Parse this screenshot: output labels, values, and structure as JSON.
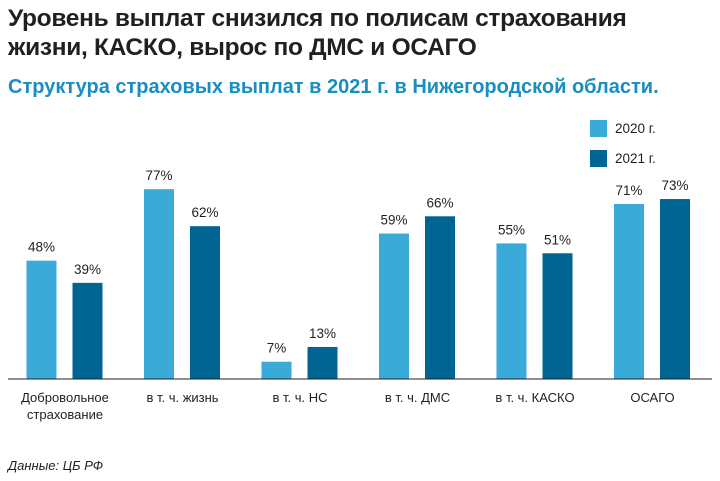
{
  "header": {
    "title": "Уровень выплат снизился по полисам страхования жизни, КАСКО, вырос по ДМС и ОСАГО",
    "subtitle": "Структура страховых выплат в 2021 г. в Нижегородской области."
  },
  "footer": {
    "source": "Данные: ЦБ РФ"
  },
  "colors": {
    "series_2020": "#3aaad9",
    "series_2021": "#006592",
    "subtitle": "#1a8dc1"
  },
  "chart_data": {
    "type": "bar",
    "title": "Структура страховых выплат в 2021 г. в Нижегородской области.",
    "xlabel": "",
    "ylabel": "",
    "ylim": [
      0,
      100
    ],
    "grid": false,
    "legend_position": "top-right",
    "categories": [
      [
        "Добровольное",
        "страхование"
      ],
      [
        "в т. ч. жизнь"
      ],
      [
        "в т. ч. НС"
      ],
      [
        "в т. ч. ДМС"
      ],
      [
        "в т. ч. КАСКО"
      ],
      [
        "ОСАГО"
      ]
    ],
    "series": [
      {
        "name": "2020 г.",
        "values": [
          48,
          77,
          7,
          59,
          55,
          71
        ],
        "labels": [
          "48%",
          "77%",
          "7%",
          "59%",
          "55%",
          "71%"
        ]
      },
      {
        "name": "2021 г.",
        "values": [
          39,
          62,
          13,
          66,
          51,
          73
        ],
        "labels": [
          "39%",
          "62%",
          "13%",
          "66%",
          "51%",
          "73%"
        ]
      }
    ]
  }
}
